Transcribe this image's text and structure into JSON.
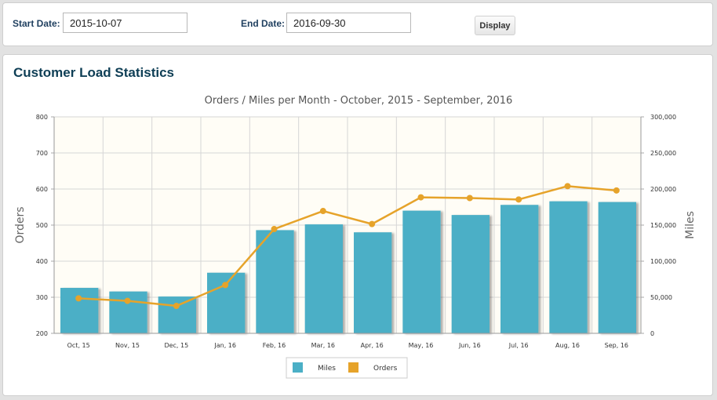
{
  "filters": {
    "start_label": "Start Date:",
    "start_value": "2015-10-07",
    "end_label": "End Date:",
    "end_value": "2016-09-30",
    "display_label": "Display"
  },
  "panel": {
    "title": "Customer Load Statistics"
  },
  "colors": {
    "bar": "#4bafc6",
    "line": "#e6a32a",
    "plot_bg": "#fffdf6"
  },
  "chart_data": {
    "type": "bar",
    "title": "Orders / Miles per Month - October, 2015 - September, 2016",
    "categories": [
      "Oct, 15",
      "Nov, 15",
      "Dec, 15",
      "Jan, 16",
      "Feb, 16",
      "Mar, 16",
      "Apr, 16",
      "May, 16",
      "Jun, 16",
      "Jul, 16",
      "Aug, 16",
      "Sep, 16"
    ],
    "series": [
      {
        "name": "Miles",
        "type": "bar",
        "axis": "right",
        "values": [
          63000,
          58000,
          51000,
          84000,
          143000,
          151000,
          140000,
          170000,
          164000,
          178000,
          183000,
          182000
        ]
      },
      {
        "name": "Orders",
        "type": "line",
        "axis": "left",
        "values": [
          297,
          290,
          276,
          334,
          489,
          539,
          503,
          577,
          575,
          571,
          608,
          596
        ]
      }
    ],
    "ylabel_left": "Orders",
    "ylabel_right": "Miles",
    "ylim_left": [
      200,
      800
    ],
    "ylim_right": [
      0,
      300000
    ],
    "yticks_left": [
      "200",
      "300",
      "400",
      "500",
      "600",
      "700",
      "800"
    ],
    "yticks_right": [
      "0",
      "50,000",
      "100,000",
      "150,000",
      "200,000",
      "250,000",
      "300,000"
    ],
    "grid": true,
    "legend_position": "bottom"
  }
}
